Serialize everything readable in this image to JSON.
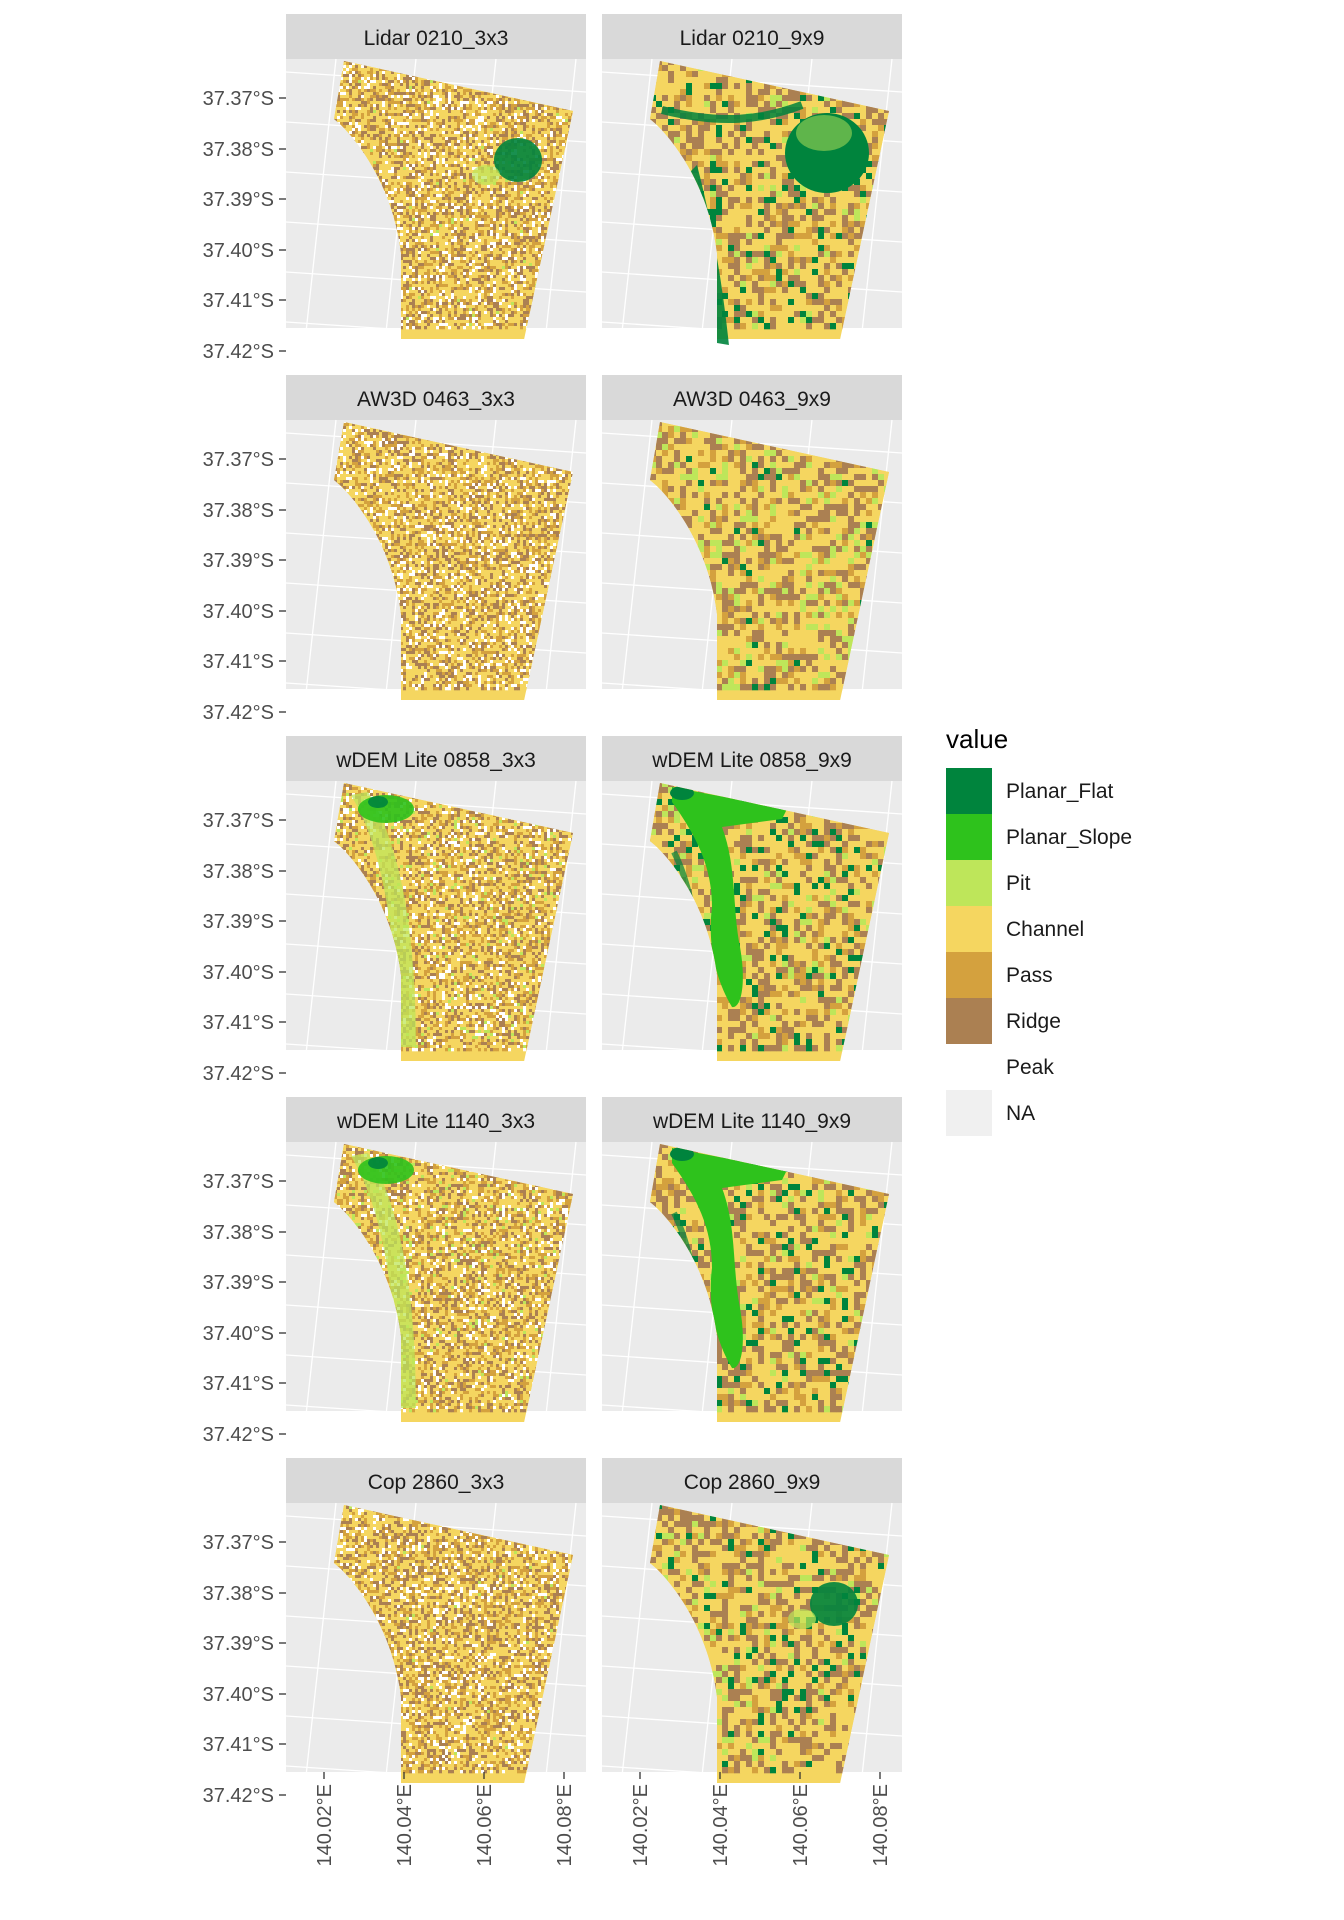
{
  "figure": {
    "panels": [
      {
        "title": "Lidar 0210_3x3",
        "kind": "p3",
        "green": 0.1,
        "patch": "ne-circle"
      },
      {
        "title": "Lidar 0210_9x9",
        "kind": "p9",
        "green": 0.55,
        "patch": "ne-big"
      },
      {
        "title": "AW3D 0463_3x3",
        "kind": "p3",
        "green": 0.0,
        "patch": "none"
      },
      {
        "title": "AW3D 0463_9x9",
        "kind": "p9",
        "green": 0.08,
        "patch": "none"
      },
      {
        "title": "wDEM Lite 0858_3x3",
        "kind": "p3",
        "green": 0.3,
        "patch": "w-band"
      },
      {
        "title": "wDEM Lite 0858_9x9",
        "kind": "p9",
        "green": 0.45,
        "patch": "w-slope"
      },
      {
        "title": "wDEM Lite 1140_3x3",
        "kind": "p3",
        "green": 0.3,
        "patch": "w-band"
      },
      {
        "title": "wDEM Lite 1140_9x9",
        "kind": "p9",
        "green": 0.45,
        "patch": "w-slope"
      },
      {
        "title": "Cop 2860_3x3",
        "kind": "p3",
        "green": 0.05,
        "patch": "none"
      },
      {
        "title": "Cop 2860_9x9",
        "kind": "p9",
        "green": 0.4,
        "patch": "ne-circle"
      }
    ],
    "y_ticks": [
      "37.37°S",
      "37.38°S",
      "37.39°S",
      "37.40°S",
      "37.41°S",
      "37.42°S"
    ],
    "x_ticks": [
      "140.02°E",
      "140.04°E",
      "140.06°E",
      "140.08°E"
    ]
  },
  "legend": {
    "title": "value",
    "items": [
      {
        "label": "Planar_Flat",
        "color": "#00843d"
      },
      {
        "label": "Planar_Slope",
        "color": "#2ec21c"
      },
      {
        "label": "Pit",
        "color": "#bee65a"
      },
      {
        "label": "Channel",
        "color": "#f5d660"
      },
      {
        "label": "Pass",
        "color": "#d4a13e"
      },
      {
        "label": "Ridge",
        "color": "#ab8052"
      },
      {
        "label": "Peak",
        "color": "#ffffff"
      },
      {
        "label": "NA",
        "color": "#f0f0f0"
      }
    ]
  }
}
